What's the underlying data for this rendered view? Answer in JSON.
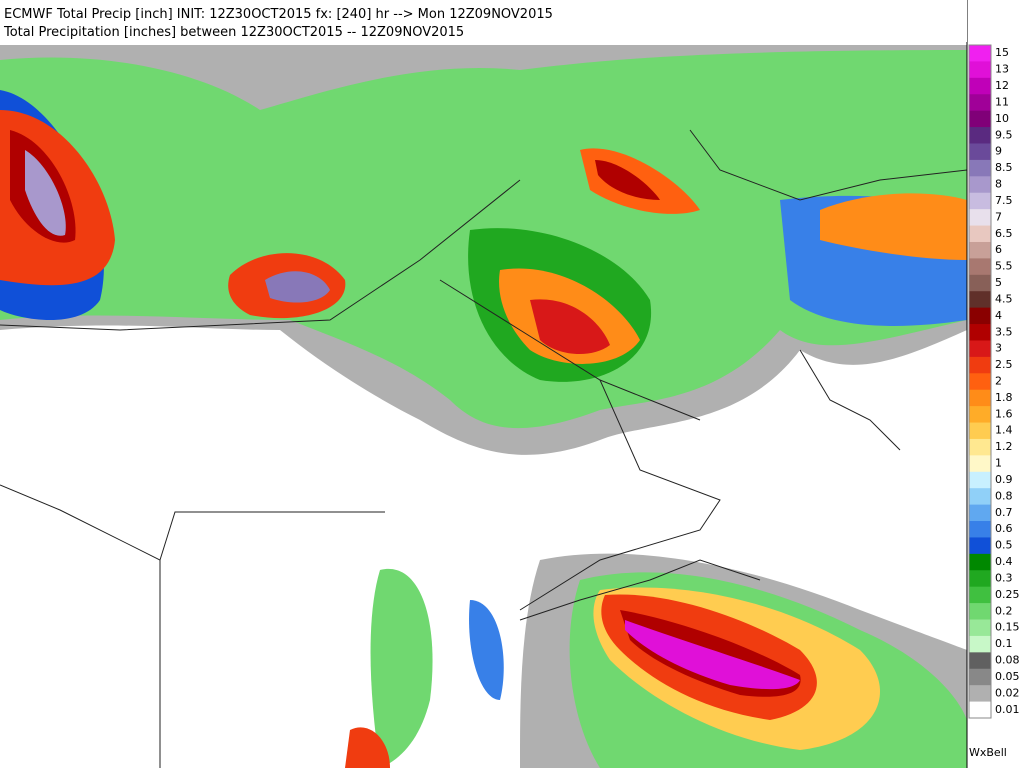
{
  "header": {
    "title": "ECMWF Total Precip [inch] INIT: 12Z30OCT2015 fx: [240] hr --> Mon 12Z09NOV2015",
    "subtitle": "Total Precipitation [inches] between 12Z30OCT2015 -- 12Z09NOV2015"
  },
  "legend": {
    "levels": [
      {
        "label": "15",
        "color": "#f020f0"
      },
      {
        "label": "13",
        "color": "#e010d8"
      },
      {
        "label": "12",
        "color": "#c000b8"
      },
      {
        "label": "11",
        "color": "#a00098"
      },
      {
        "label": "10",
        "color": "#800078"
      },
      {
        "label": "9.5",
        "color": "#5a2a80"
      },
      {
        "label": "9",
        "color": "#6a4a9a"
      },
      {
        "label": "8.5",
        "color": "#8878b8"
      },
      {
        "label": "8",
        "color": "#a898cc"
      },
      {
        "label": "7.5",
        "color": "#c8bce0"
      },
      {
        "label": "7",
        "color": "#e8e0ec"
      },
      {
        "label": "6.5",
        "color": "#e8c8c0"
      },
      {
        "label": "6",
        "color": "#c8a098"
      },
      {
        "label": "5.5",
        "color": "#a87870"
      },
      {
        "label": "5",
        "color": "#886058"
      },
      {
        "label": "4.5",
        "color": "#60302a"
      },
      {
        "label": "4",
        "color": "#8a0000"
      },
      {
        "label": "3.5",
        "color": "#b00000"
      },
      {
        "label": "3",
        "color": "#d81818"
      },
      {
        "label": "2.5",
        "color": "#f03c10"
      },
      {
        "label": "2",
        "color": "#ff6010"
      },
      {
        "label": "1.8",
        "color": "#ff8c18"
      },
      {
        "label": "1.6",
        "color": "#ffac28"
      },
      {
        "label": "1.4",
        "color": "#ffcc50"
      },
      {
        "label": "1.2",
        "color": "#ffe890"
      },
      {
        "label": "1",
        "color": "#fff8c8"
      },
      {
        "label": "0.9",
        "color": "#c8f0ff"
      },
      {
        "label": "0.8",
        "color": "#90d0f8"
      },
      {
        "label": "0.7",
        "color": "#60a8f0"
      },
      {
        "label": "0.6",
        "color": "#3880e8"
      },
      {
        "label": "0.5",
        "color": "#1050d8"
      },
      {
        "label": "0.4",
        "color": "#008800"
      },
      {
        "label": "0.3",
        "color": "#20a820"
      },
      {
        "label": "0.25",
        "color": "#40c040"
      },
      {
        "label": "0.2",
        "color": "#70d870"
      },
      {
        "label": "0.15",
        "color": "#98e898"
      },
      {
        "label": "0.1",
        "color": "#c8f8c8"
      },
      {
        "label": "0.08",
        "color": "#606060"
      },
      {
        "label": "0.05",
        "color": "#888888"
      },
      {
        "label": "0.02",
        "color": "#b0b0b0"
      },
      {
        "label": "0.01",
        "color": "#ffffff"
      }
    ]
  },
  "brand": "WxBell"
}
